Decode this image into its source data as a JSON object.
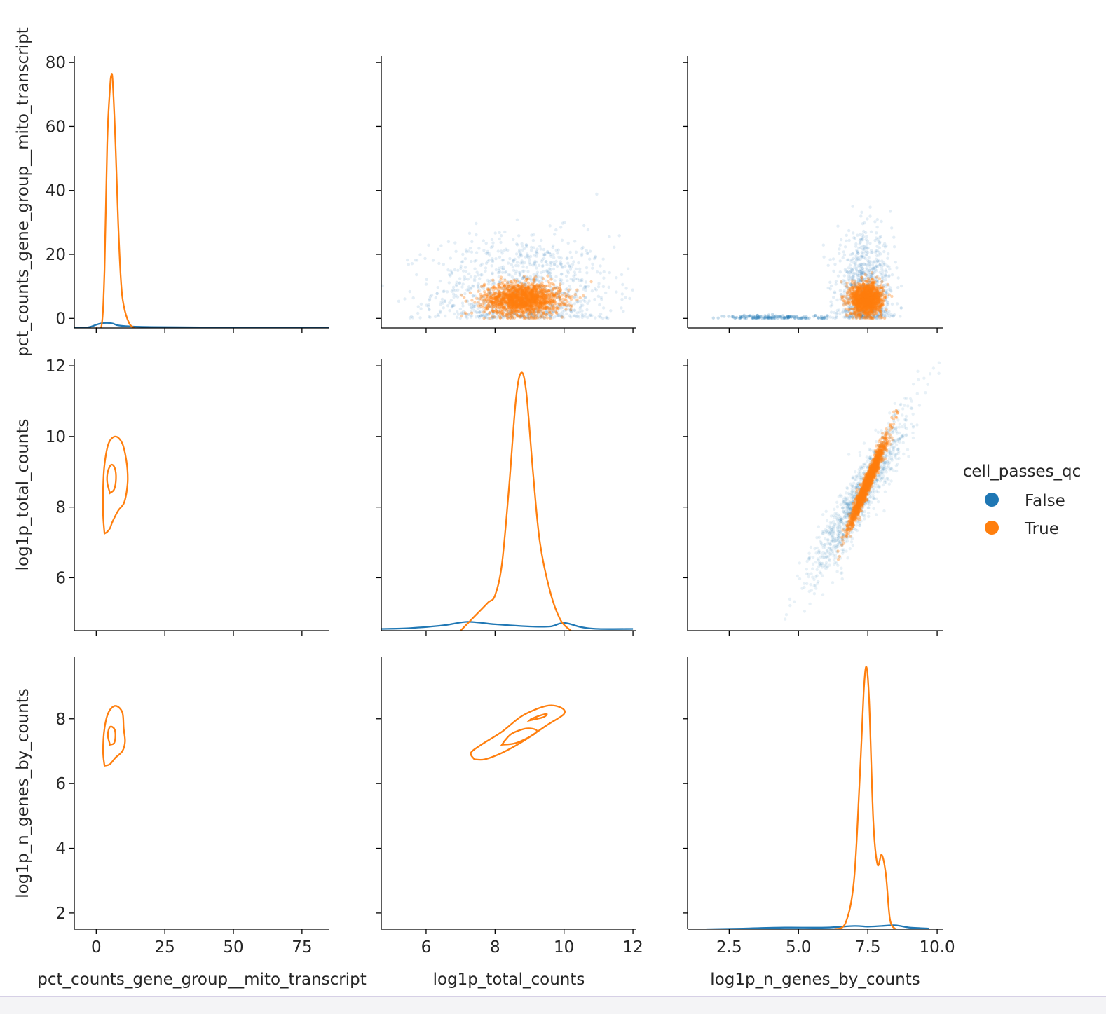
{
  "chart_data": {
    "type": "pairplot",
    "hue": "cell_passes_qc",
    "variables": [
      "pct_counts_gene_group__mito_transcript",
      "log1p_total_counts",
      "log1p_n_genes_by_counts"
    ],
    "series": [
      {
        "name": "False",
        "color": "#1f77b4"
      },
      {
        "name": "True",
        "color": "#ff7f0e"
      }
    ],
    "axes": {
      "pct_counts_gene_group__mito_transcript": {
        "range": [
          -8,
          85
        ],
        "ticks": [
          0,
          25,
          50,
          75
        ],
        "y_ticks": [
          0,
          20,
          40,
          60,
          80
        ],
        "y_range": [
          -3,
          82
        ]
      },
      "log1p_total_counts": {
        "range": [
          4.7,
          12.1
        ],
        "ticks": [
          6,
          8,
          10,
          12
        ],
        "y_ticks": [
          6,
          8,
          10,
          12
        ],
        "y_range": [
          4.5,
          12.2
        ]
      },
      "log1p_n_genes_by_counts": {
        "range": [
          1.0,
          10.2
        ],
        "ticks": [
          2.5,
          5.0,
          7.5,
          10.0
        ],
        "tick_labels": [
          "2.5",
          "5.0",
          "7.5",
          "10.0"
        ],
        "y_ticks": [
          2,
          4,
          6,
          8
        ],
        "y_range": [
          1.5,
          9.9
        ]
      }
    },
    "diagonal_kde": {
      "pct_counts_gene_group__mito_transcript": {
        "True": [
          [
            0.0,
            -3
          ],
          [
            2.0,
            -2
          ],
          [
            3.0,
            15
          ],
          [
            4.0,
            55
          ],
          [
            5.0,
            72
          ],
          [
            5.5,
            76
          ],
          [
            6.0,
            74
          ],
          [
            7.0,
            55
          ],
          [
            8.0,
            30
          ],
          [
            9.0,
            12
          ],
          [
            10.0,
            4
          ],
          [
            12.0,
            -1.5
          ],
          [
            14.0,
            -3
          ]
        ],
        "False": [
          [
            -8,
            -3
          ],
          [
            -3,
            -2.8
          ],
          [
            0,
            -2.0
          ],
          [
            2,
            -1.5
          ],
          [
            4,
            -1.4
          ],
          [
            6,
            -1.6
          ],
          [
            8,
            -2.2
          ],
          [
            12,
            -2.5
          ],
          [
            20,
            -2.7
          ],
          [
            50,
            -2.9
          ],
          [
            85,
            -3.0
          ]
        ]
      },
      "log1p_total_counts": {
        "True": [
          [
            7.0,
            4.5
          ],
          [
            7.2,
            4.7
          ],
          [
            7.5,
            5.0
          ],
          [
            7.8,
            5.3
          ],
          [
            8.0,
            5.5
          ],
          [
            8.2,
            6.4
          ],
          [
            8.4,
            8.5
          ],
          [
            8.6,
            11.0
          ],
          [
            8.75,
            11.8
          ],
          [
            8.9,
            11.3
          ],
          [
            9.1,
            9.0
          ],
          [
            9.3,
            7.0
          ],
          [
            9.6,
            5.6
          ],
          [
            9.9,
            4.8
          ],
          [
            10.2,
            4.5
          ]
        ],
        "False": [
          [
            4.7,
            4.55
          ],
          [
            5.5,
            4.57
          ],
          [
            6.5,
            4.65
          ],
          [
            7.2,
            4.75
          ],
          [
            8.0,
            4.68
          ],
          [
            9.0,
            4.62
          ],
          [
            9.6,
            4.62
          ],
          [
            10.0,
            4.72
          ],
          [
            10.5,
            4.6
          ],
          [
            11.0,
            4.55
          ],
          [
            12.0,
            4.55
          ]
        ]
      },
      "log1p_n_genes_by_counts": {
        "True": [
          [
            6.3,
            1.5
          ],
          [
            6.7,
            1.7
          ],
          [
            7.0,
            3.0
          ],
          [
            7.2,
            6.0
          ],
          [
            7.35,
            8.8
          ],
          [
            7.45,
            9.6
          ],
          [
            7.55,
            8.5
          ],
          [
            7.7,
            4.8
          ],
          [
            7.85,
            3.5
          ],
          [
            8.0,
            3.8
          ],
          [
            8.15,
            3.2
          ],
          [
            8.3,
            1.8
          ],
          [
            8.5,
            1.5
          ]
        ],
        "False": [
          [
            1.7,
            1.5
          ],
          [
            3.0,
            1.52
          ],
          [
            4.5,
            1.55
          ],
          [
            6.0,
            1.55
          ],
          [
            7.0,
            1.6
          ],
          [
            7.5,
            1.58
          ],
          [
            8.0,
            1.6
          ],
          [
            8.5,
            1.62
          ],
          [
            9.0,
            1.55
          ],
          [
            9.7,
            1.52
          ]
        ]
      }
    },
    "scatter_clusters": [
      {
        "x": "log1p_total_counts",
        "y": "pct_counts_gene_group__mito_transcript",
        "series": "False",
        "cx": 8.8,
        "cy": 8,
        "sx": 1.3,
        "sy": 9,
        "rho": 0,
        "n": 1100,
        "opacity": 0.12
      },
      {
        "x": "log1p_total_counts",
        "y": "pct_counts_gene_group__mito_transcript",
        "series": "True",
        "cx": 8.8,
        "cy": 6,
        "sx": 0.55,
        "sy": 2.5,
        "rho": 0,
        "n": 1600,
        "opacity": 0.35
      },
      {
        "x": "log1p_n_genes_by_counts",
        "y": "pct_counts_gene_group__mito_transcript",
        "series": "False",
        "cx": 7.4,
        "cy": 8,
        "sx": 0.5,
        "sy": 9,
        "rho": 0,
        "n": 900,
        "opacity": 0.12
      },
      {
        "x": "log1p_n_genes_by_counts",
        "y": "pct_counts_gene_group__mito_transcript",
        "series": "False",
        "cx": 4.2,
        "cy": 0.3,
        "sx": 0.9,
        "sy": 0.35,
        "rho": 0,
        "n": 150,
        "opacity": 0.25
      },
      {
        "x": "log1p_n_genes_by_counts",
        "y": "pct_counts_gene_group__mito_transcript",
        "series": "True",
        "cx": 7.45,
        "cy": 6,
        "sx": 0.28,
        "sy": 2.5,
        "rho": 0,
        "n": 1400,
        "opacity": 0.35
      },
      {
        "x": "log1p_n_genes_by_counts",
        "y": "log1p_total_counts",
        "series": "False",
        "cx": 7.2,
        "cy": 8.3,
        "sx": 0.9,
        "sy": 1.2,
        "rho": 0.93,
        "n": 1100,
        "opacity": 0.1
      },
      {
        "x": "log1p_n_genes_by_counts",
        "y": "log1p_total_counts",
        "series": "True",
        "cx": 7.5,
        "cy": 8.7,
        "sx": 0.33,
        "sy": 0.62,
        "rho": 0.97,
        "n": 1500,
        "opacity": 0.35
      }
    ],
    "kde_contours": [
      {
        "x": "pct_counts_gene_group__mito_transcript",
        "y": "log1p_total_counts",
        "series": "True",
        "levels": [
          [
            [
              3,
              7.25
            ],
            [
              4,
              7.3
            ],
            [
              5,
              7.4
            ],
            [
              6,
              7.6
            ],
            [
              8,
              7.9
            ],
            [
              10,
              8.1
            ],
            [
              11,
              8.4
            ],
            [
              11.5,
              8.8
            ],
            [
              11,
              9.3
            ],
            [
              9.5,
              9.8
            ],
            [
              7,
              10.0
            ],
            [
              4.5,
              9.8
            ],
            [
              3,
              9.2
            ],
            [
              2.5,
              8.5
            ],
            [
              2.5,
              7.8
            ],
            [
              3,
              7.25
            ]
          ],
          [
            [
              5,
              8.4
            ],
            [
              6.5,
              8.5
            ],
            [
              7.2,
              8.8
            ],
            [
              6.8,
              9.1
            ],
            [
              5.5,
              9.2
            ],
            [
              4.2,
              9.0
            ],
            [
              4.0,
              8.7
            ],
            [
              5,
              8.4
            ]
          ]
        ]
      },
      {
        "x": "pct_counts_gene_group__mito_transcript",
        "y": "log1p_n_genes_by_counts",
        "series": "True",
        "levels": [
          [
            [
              3,
              6.55
            ],
            [
              5,
              6.6
            ],
            [
              7,
              6.8
            ],
            [
              9.5,
              7.0
            ],
            [
              10.5,
              7.3
            ],
            [
              10,
              7.7
            ],
            [
              9.5,
              8.2
            ],
            [
              7,
              8.4
            ],
            [
              4.5,
              8.2
            ],
            [
              3,
              7.7
            ],
            [
              2.5,
              7.0
            ],
            [
              3,
              6.55
            ]
          ],
          [
            [
              5,
              7.2
            ],
            [
              6.5,
              7.25
            ],
            [
              7,
              7.5
            ],
            [
              6.5,
              7.7
            ],
            [
              5,
              7.75
            ],
            [
              4.2,
              7.5
            ],
            [
              5,
              7.2
            ]
          ]
        ]
      },
      {
        "x": "log1p_total_counts",
        "y": "log1p_n_genes_by_counts",
        "series": "True",
        "levels": [
          [
            [
              7.4,
              6.75
            ],
            [
              7.7,
              6.75
            ],
            [
              8.2,
              6.95
            ],
            [
              8.8,
              7.3
            ],
            [
              9.5,
              7.8
            ],
            [
              10.0,
              8.15
            ],
            [
              9.9,
              8.35
            ],
            [
              9.5,
              8.4
            ],
            [
              8.8,
              8.1
            ],
            [
              8.2,
              7.6
            ],
            [
              7.6,
              7.2
            ],
            [
              7.3,
              6.95
            ],
            [
              7.4,
              6.75
            ]
          ],
          [
            [
              8.2,
              7.2
            ],
            [
              8.6,
              7.25
            ],
            [
              9.1,
              7.5
            ],
            [
              9.2,
              7.65
            ],
            [
              8.9,
              7.7
            ],
            [
              8.5,
              7.55
            ],
            [
              8.3,
              7.35
            ],
            [
              8.2,
              7.2
            ]
          ],
          [
            [
              9.0,
              7.95
            ],
            [
              9.4,
              8.05
            ],
            [
              9.5,
              8.15
            ],
            [
              9.3,
              8.1
            ],
            [
              9.05,
              8.0
            ]
          ]
        ]
      }
    ],
    "legend": {
      "title": "cell_passes_qc",
      "placement": "right"
    }
  }
}
